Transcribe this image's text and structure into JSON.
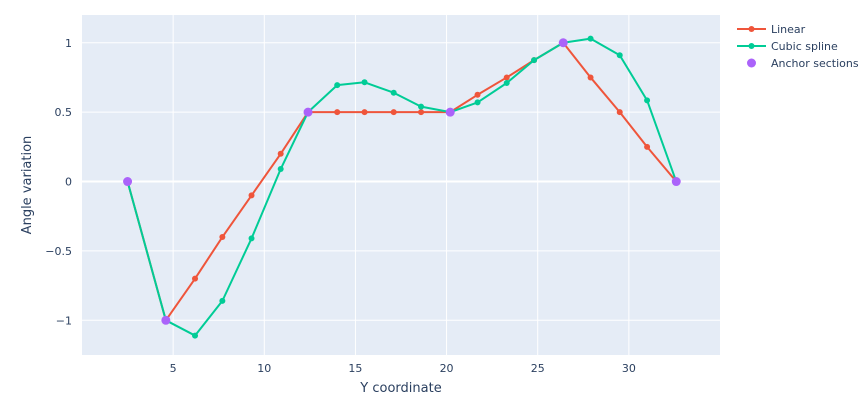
{
  "chart_data": {
    "type": "line",
    "title": "",
    "xlabel": "Y coordinate",
    "ylabel": "Angle variation",
    "xlim": [
      0.0,
      35.0
    ],
    "ylim": [
      -1.25,
      1.2
    ],
    "xticks": [
      5,
      10,
      15,
      20,
      25,
      30
    ],
    "yticks": [
      -1,
      -0.5,
      0,
      0.5,
      1
    ],
    "ytick_labels": [
      "−1",
      "−0.5",
      "0",
      "0.5",
      "1"
    ],
    "grid": true,
    "background": "#e5ecf6",
    "legend_position": "top-right",
    "series": [
      {
        "name": "Linear",
        "mode": "lines+markers",
        "color": "#ef553b",
        "x": [
          2.5,
          4.6,
          6.2,
          7.7,
          9.3,
          10.9,
          12.4,
          14.0,
          15.5,
          17.1,
          18.6,
          20.2,
          21.7,
          23.3,
          24.8,
          26.4,
          27.9,
          29.5,
          31.0,
          32.6
        ],
        "y": [
          0,
          -1,
          -0.7,
          -0.4,
          -0.1,
          0.2,
          0.5,
          0.5,
          0.5,
          0.5,
          0.5,
          0.5,
          0.625,
          0.75,
          0.875,
          1,
          0.75,
          0.5,
          0.25,
          0
        ]
      },
      {
        "name": "Cubic spline",
        "mode": "lines+markers",
        "color": "#00cc96",
        "x": [
          2.5,
          4.6,
          6.2,
          7.7,
          9.3,
          10.9,
          12.4,
          14.0,
          15.5,
          17.1,
          18.6,
          20.2,
          21.7,
          23.3,
          24.8,
          26.4,
          27.9,
          29.5,
          31.0,
          32.6
        ],
        "y": [
          0,
          -1,
          -1.11,
          -0.86,
          -0.41,
          0.09,
          0.5,
          0.695,
          0.715,
          0.64,
          0.54,
          0.5,
          0.57,
          0.71,
          0.875,
          1,
          1.03,
          0.91,
          0.585,
          0
        ]
      },
      {
        "name": "Anchor sections",
        "mode": "markers",
        "color": "#ab63fa",
        "x": [
          2.5,
          4.6,
          12.4,
          20.2,
          26.4,
          32.6
        ],
        "y": [
          0,
          -1,
          0.5,
          0.5,
          1,
          0
        ]
      }
    ]
  }
}
